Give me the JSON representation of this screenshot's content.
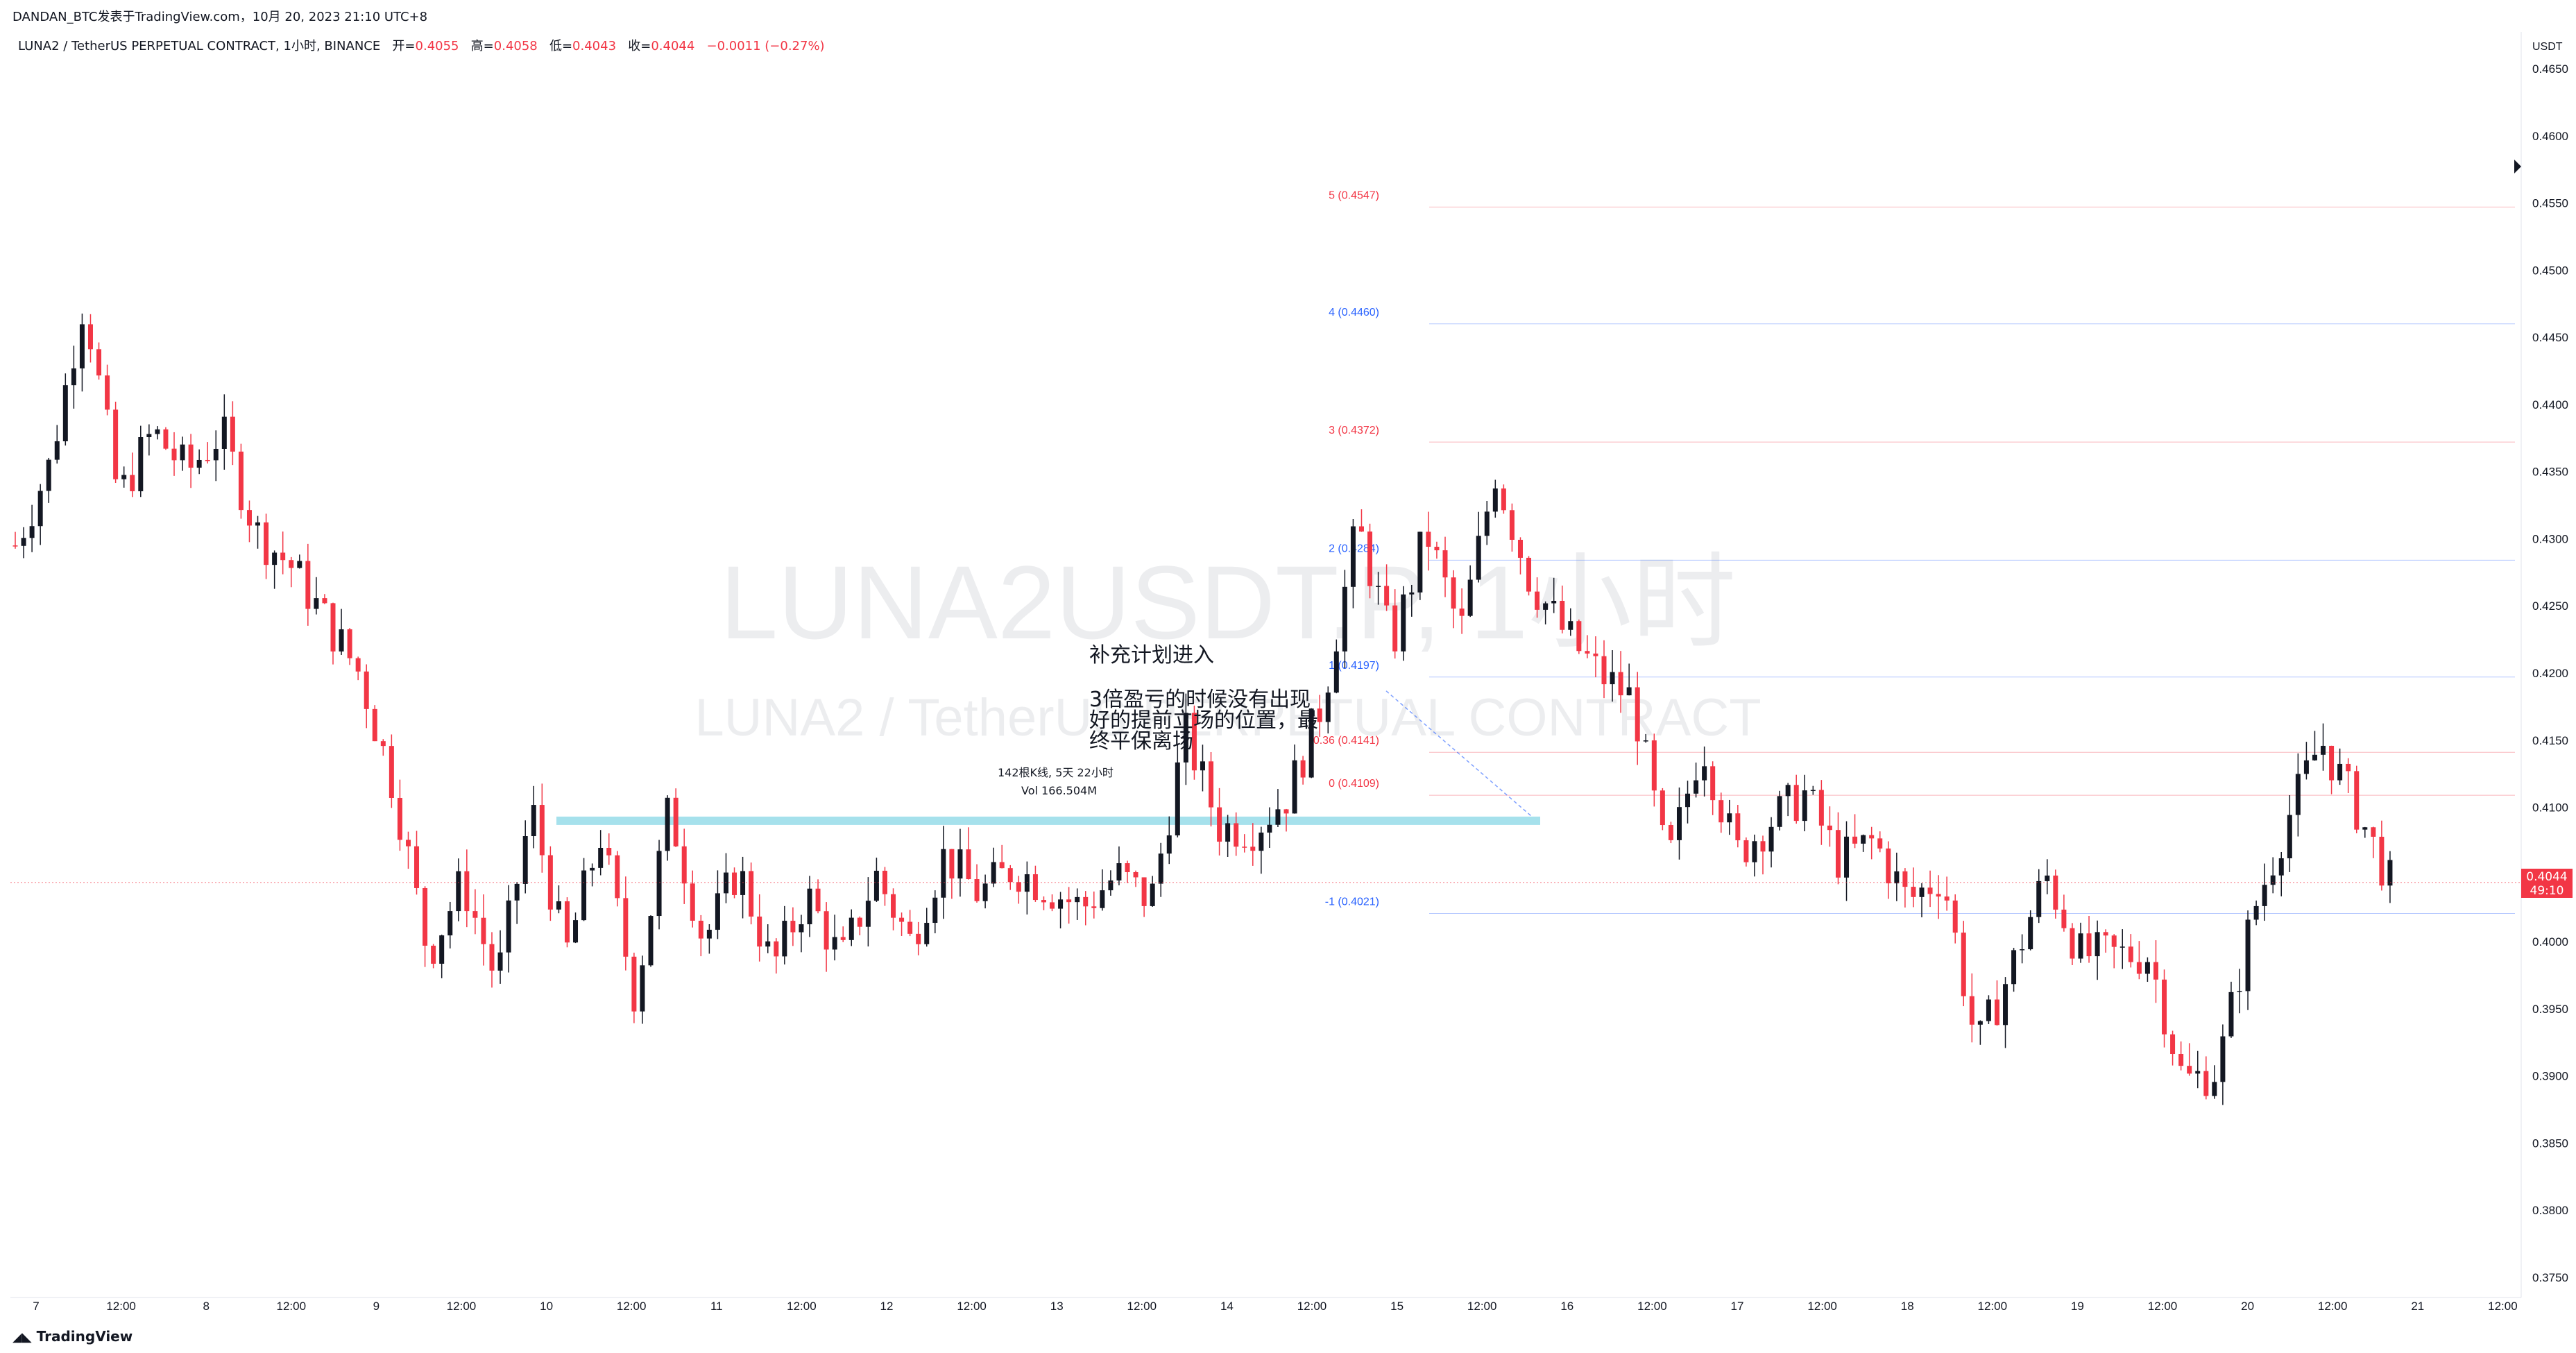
{
  "header": {
    "publish_line": "DANDAN_BTC发表于TradingView.com，10月 20, 2023 21:10 UTC+8",
    "symbol_desc": "LUNA2 / TetherUS PERPETUAL CONTRACT, 1小时, BINANCE",
    "ohlc": [
      {
        "label": "开=",
        "value": "0.4055"
      },
      {
        "label": "高=",
        "value": "0.4058"
      },
      {
        "label": "低=",
        "value": "0.4043"
      },
      {
        "label": "收=",
        "value": "0.4044"
      }
    ],
    "change": "−0.0011 (−0.27%)"
  },
  "watermark": {
    "line1": "LUNA2USDT.P, 1小时",
    "line2": "LUNA2 / TetherUS PERPETUAL CONTRACT"
  },
  "price_axis": {
    "unit": "USDT",
    "current_price": "0.4044",
    "countdown": "49:10"
  },
  "annotations": {
    "note_title": "补充计划进入",
    "note_body_1": "3倍盈亏的时候没有出现",
    "note_body_2": "好的提前立场的位置，最",
    "note_body_3": "终平保离场",
    "range_bars": "142根K线, 5天 22小时",
    "range_vol": "Vol 166.504M"
  },
  "footer": {
    "brand": "TradingView"
  },
  "colors": {
    "up": "#131722",
    "down": "#f23645",
    "fib_red": "#f23645",
    "fib_blue": "#2962ff",
    "zone": "#a6e1ec"
  },
  "chart_data": {
    "type": "candlestick",
    "title": "LUNA2USDT.P, 1小时",
    "ylim": [
      0.3735,
      0.4665
    ],
    "y_ticks": [
      "0.3750",
      "0.3800",
      "0.3850",
      "0.3900",
      "0.3950",
      "0.4000",
      "0.4050",
      "0.4100",
      "0.4150",
      "0.4200",
      "0.4250",
      "0.4300",
      "0.4350",
      "0.4400",
      "0.4450",
      "0.4500",
      "0.4550",
      "0.4600",
      "0.4650"
    ],
    "x_ticks": [
      "7",
      "12:00",
      "8",
      "12:00",
      "9",
      "12:00",
      "10",
      "12:00",
      "11",
      "12:00",
      "12",
      "12:00",
      "13",
      "12:00",
      "14",
      "12:00",
      "15",
      "12:00",
      "16",
      "12:00",
      "17",
      "12:00",
      "18",
      "12:00",
      "19",
      "12:00",
      "20",
      "12:00",
      "21",
      "12:00"
    ],
    "fib_levels": [
      {
        "label": "5 (0.4547)",
        "price": 0.4547,
        "color": "red"
      },
      {
        "label": "4 (0.4460)",
        "price": 0.446,
        "color": "blue"
      },
      {
        "label": "3 (0.4372)",
        "price": 0.4372,
        "color": "red"
      },
      {
        "label": "2 (0.4284)",
        "price": 0.4284,
        "color": "blue"
      },
      {
        "label": "1 (0.4197)",
        "price": 0.4197,
        "color": "blue"
      },
      {
        "label": "0.36 (0.4141)",
        "price": 0.4141,
        "color": "red"
      },
      {
        "label": "0 (0.4109)",
        "price": 0.4109,
        "color": "red"
      },
      {
        "label": "-1 (0.4021)",
        "price": 0.4021,
        "color": "blue"
      }
    ],
    "zone_price": 0.409,
    "current_price": 0.4044,
    "anchor_prices": [
      0.4295,
      0.4355,
      0.448,
      0.433,
      0.438,
      0.435,
      0.438,
      0.4305,
      0.428,
      0.424,
      0.42,
      0.4115,
      0.399,
      0.4045,
      0.397,
      0.41,
      0.399,
      0.408,
      0.396,
      0.41,
      0.4,
      0.4055,
      0.398,
      0.4035,
      0.3985,
      0.405,
      0.4,
      0.4065,
      0.4035,
      0.4055,
      0.404,
      0.4025,
      0.405,
      0.403,
      0.4155,
      0.4085,
      0.4085,
      0.411,
      0.418,
      0.431,
      0.422,
      0.4305,
      0.423,
      0.435,
      0.427,
      0.423,
      0.42,
      0.418,
      0.4055,
      0.415,
      0.4065,
      0.409,
      0.411,
      0.406,
      0.4075,
      0.403,
      0.405,
      0.392,
      0.398,
      0.405,
      0.399,
      0.399,
      0.399,
      0.3895,
      0.3905,
      0.402,
      0.409,
      0.415,
      0.41,
      0.4044
    ],
    "candle_count": 285
  }
}
